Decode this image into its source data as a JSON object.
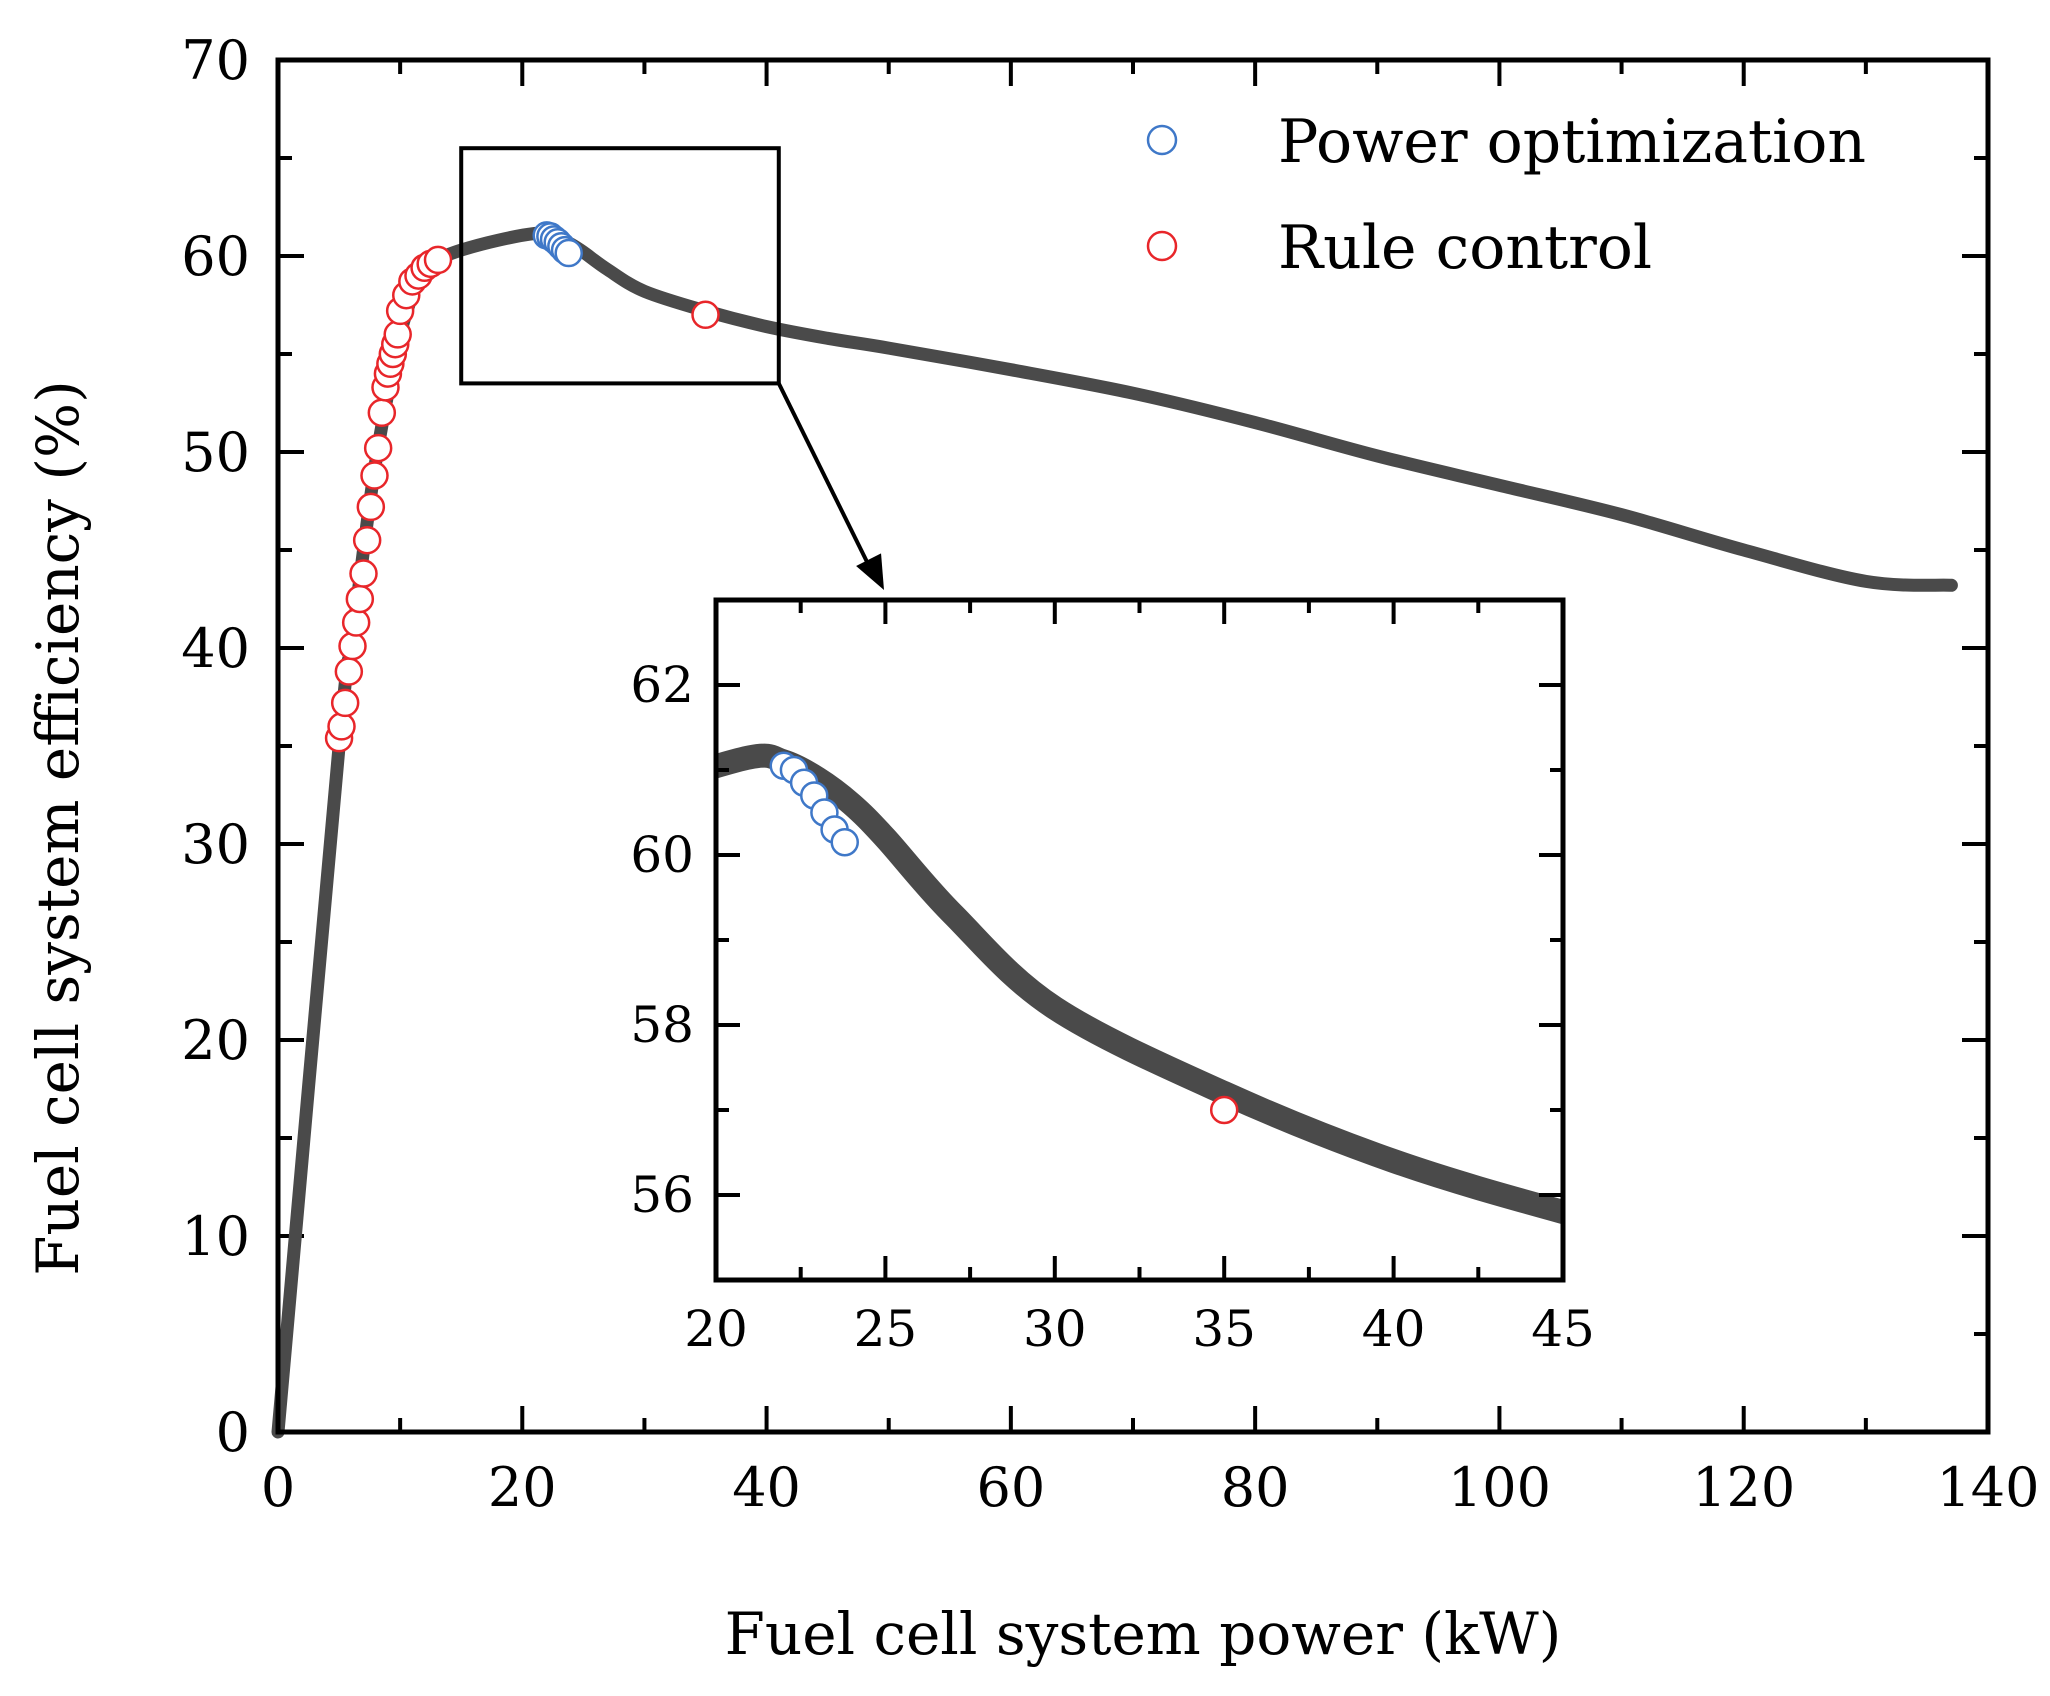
{
  "chart_data": {
    "type": "scatter",
    "xlabel": "Fuel cell system power (kW)",
    "ylabel": "Fuel cell system efficiency (%)",
    "xlim": [
      0,
      140
    ],
    "ylim": [
      0,
      70
    ],
    "xticks": [
      "0",
      "20",
      "40",
      "60",
      "80",
      "100",
      "120",
      "140"
    ],
    "yticks": [
      "0",
      "10",
      "20",
      "30",
      "40",
      "50",
      "60",
      "70"
    ],
    "legend": [
      {
        "name": "Power optimization",
        "color": "#3f78c8"
      },
      {
        "name": "Rule control",
        "color": "#e8262a"
      }
    ],
    "curve": {
      "name": "efficiency curve",
      "color": "#4a4a4a",
      "x": [
        0,
        5,
        6,
        7,
        8,
        9,
        10,
        11,
        12,
        13,
        15,
        18,
        21,
        22,
        23,
        24,
        25,
        27,
        30,
        35,
        40,
        45,
        50,
        60,
        70,
        80,
        90,
        100,
        110,
        120,
        130,
        137
      ],
      "y": [
        0,
        35,
        40,
        45,
        49.5,
        53,
        56,
        58,
        59.2,
        59.8,
        60.3,
        60.8,
        61.15,
        61.1,
        60.9,
        60.6,
        60.2,
        59.3,
        58.2,
        57.2,
        56.4,
        55.8,
        55.3,
        54.2,
        53,
        51.5,
        49.8,
        48.3,
        46.8,
        45,
        43.4,
        43.2
      ]
    },
    "series": [
      {
        "name": "Power optimization",
        "color": "#3f78c8",
        "x": [
          22,
          22.3,
          22.6,
          22.9,
          23.2,
          23.5,
          23.8
        ],
        "y": [
          61.05,
          61.0,
          60.85,
          60.7,
          60.5,
          60.3,
          60.15
        ]
      },
      {
        "name": "Rule control",
        "color": "#e8262a",
        "x": [
          5.0,
          5.2,
          5.5,
          5.8,
          6.1,
          6.4,
          6.7,
          7.0,
          7.3,
          7.6,
          7.9,
          8.2,
          8.5,
          8.8,
          9.0,
          9.2,
          9.4,
          9.6,
          9.8,
          10.0,
          10.5,
          11.0,
          11.5,
          12.0,
          12.5,
          13.1,
          35.0
        ],
        "y": [
          35.4,
          36,
          37.2,
          38.8,
          40.1,
          41.3,
          42.5,
          43.8,
          45.5,
          47.2,
          48.8,
          50.2,
          52,
          53.3,
          54,
          54.5,
          55,
          55.5,
          56,
          57.2,
          58,
          58.7,
          59,
          59.4,
          59.6,
          59.8,
          57.0
        ]
      }
    ],
    "zoom_box": {
      "xlim": [
        15,
        41
      ],
      "ylim": [
        53.5,
        65.5
      ]
    },
    "inset": {
      "xlim": [
        20,
        45
      ],
      "ylim": [
        55,
        63
      ],
      "xticks": [
        "20",
        "25",
        "30",
        "35",
        "40",
        "45"
      ],
      "yticks": [
        "56",
        "58",
        "60",
        "62"
      ]
    }
  }
}
